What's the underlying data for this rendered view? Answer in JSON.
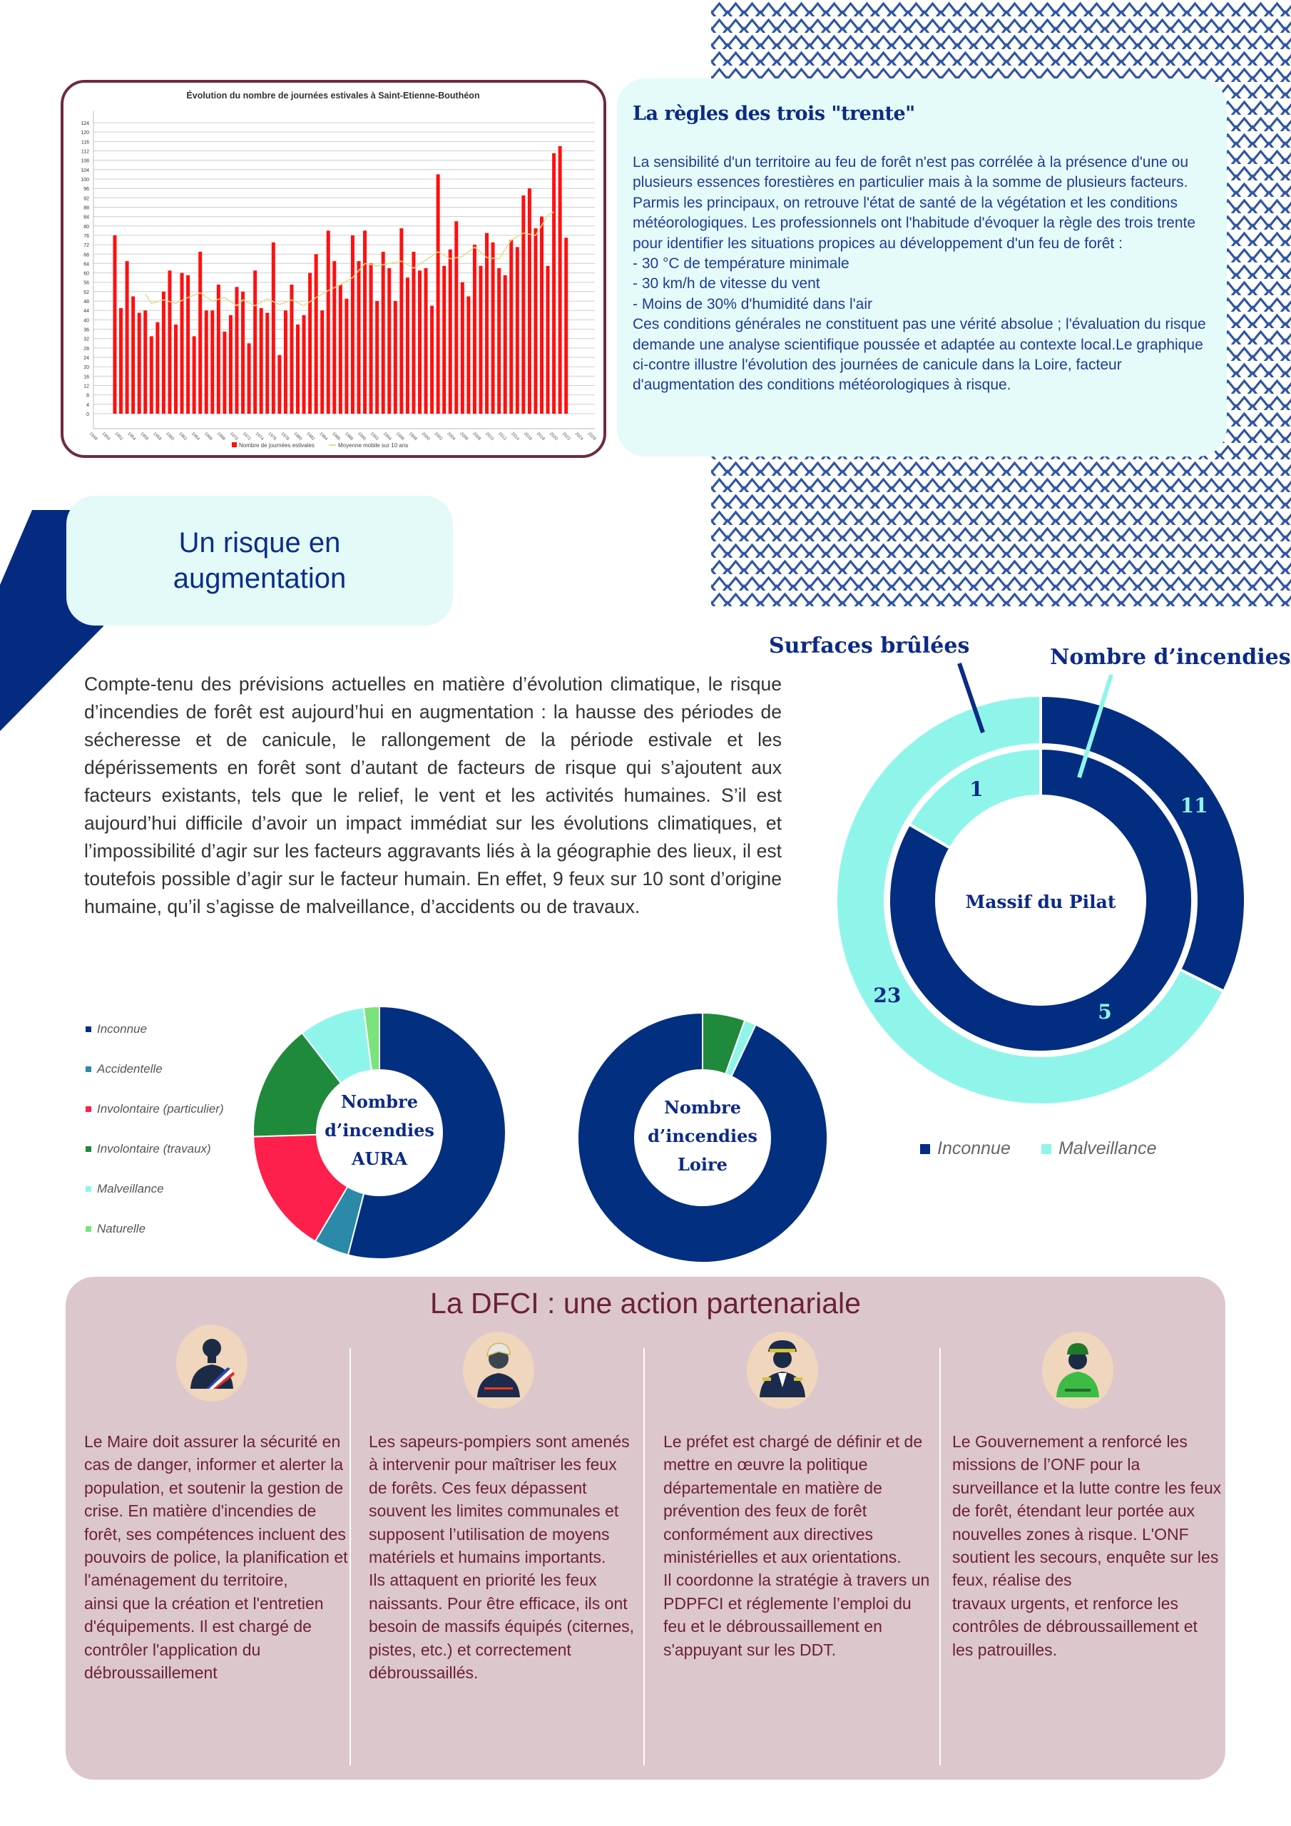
{
  "rule_box": {
    "title": "La règles des trois \"trente\"",
    "body": "La sensibilité d'un territoire au feu de forêt n'est pas corrélée à la présence d'une ou plusieurs essences forestières en particulier mais à la somme de plusieurs facteurs. Parmis les principaux, on retrouve l'état de santé de la végétation et les conditions météorologiques. Les professionnels ont l'habitude d'évoquer la règle des trois trente pour identifier les situations propices au développement d'un feu de forêt :\n- 30 °C de température minimale\n- 30 km/h de vitesse du vent\n- Moins de 30% d'humidité dans l'air\nCes conditions générales ne constituent pas une vérité absolue ; l'évaluation du risque demande une analyse scientifique poussée et adaptée au contexte local.Le graphique ci-contre illustre l'évolution des journées de canicule dans la Loire, facteur d'augmentation des conditions météorologiques à risque."
  },
  "risk": {
    "title": "Un risque en augmentation",
    "text": "Compte-tenu des prévisions actuelles en matière d’évolution climatique, le risque d’incendies de forêt est aujourd’hui en augmentation : la hausse des périodes de sécheresse et de canicule, le rallongement de la période estivale et les dépérissements en forêt sont d’autant de facteurs de risque qui s’ajoutent aux facteurs existants, tels que le relief, le vent et les activités humaines. S’il est aujourd’hui difficile d’avoir un impact immédiat sur les évolutions climatiques, et l’impossibilité d’agir sur les facteurs aggravants liés à la géographie des lieux, il est toutefois possible d’agir sur le facteur humain. En effet, 9 feux sur 10 sont d’origine humaine, qu’il s’agisse de malveillance, d’accidents ou de travaux."
  },
  "chart_data": [
    {
      "type": "bar",
      "title": "Évolution du nombre de journées estivales à Saint-Etienne-Bouthéon",
      "xlabel": "",
      "ylabel": "",
      "ylim": [
        0,
        124
      ],
      "yticks": [
        0,
        4,
        8,
        12,
        16,
        20,
        24,
        28,
        32,
        36,
        40,
        44,
        48,
        52,
        56,
        60,
        64,
        68,
        72,
        76,
        80,
        84,
        88,
        92,
        96,
        100,
        104,
        108,
        112,
        116,
        120,
        124
      ],
      "xtick_labels": [
        "1948",
        "1950",
        "1952",
        "1954",
        "1956",
        "1958",
        "1960",
        "1962",
        "1964",
        "1966",
        "1968",
        "1970",
        "1972",
        "1974",
        "1976",
        "1978",
        "1980",
        "1982",
        "1984",
        "1986",
        "1988",
        "1990",
        "1992",
        "1994",
        "1996",
        "1998",
        "2000",
        "2002",
        "2004",
        "2006",
        "2008",
        "2010",
        "2012",
        "2014",
        "2016",
        "2018",
        "2020",
        "2022",
        "2024",
        "2026"
      ],
      "grid": true,
      "legend_position": "bottom",
      "x": [
        1950,
        1951,
        1952,
        1953,
        1954,
        1955,
        1956,
        1957,
        1958,
        1959,
        1960,
        1961,
        1962,
        1963,
        1964,
        1965,
        1966,
        1967,
        1968,
        1969,
        1970,
        1971,
        1972,
        1973,
        1974,
        1975,
        1976,
        1977,
        1978,
        1979,
        1980,
        1981,
        1982,
        1983,
        1984,
        1985,
        1986,
        1987,
        1988,
        1989,
        1990,
        1991,
        1992,
        1993,
        1994,
        1995,
        1996,
        1997,
        1998,
        1999,
        2000,
        2001,
        2002,
        2003,
        2004,
        2005,
        2006,
        2007,
        2008,
        2009,
        2010,
        2011,
        2012,
        2013,
        2014,
        2015,
        2016,
        2017,
        2018,
        2019,
        2020,
        2021,
        2022,
        2023,
        2024
      ],
      "series": [
        {
          "name": "Nombre de journées estivales",
          "type": "bar",
          "color": "#ff1010",
          "values": [
            76,
            45,
            65,
            50,
            43,
            44,
            33,
            39,
            52,
            61,
            38,
            60,
            59,
            33,
            69,
            44,
            44,
            55,
            35,
            42,
            54,
            52,
            30,
            61,
            45,
            43,
            73,
            25,
            44,
            55,
            38,
            42,
            60,
            68,
            44,
            78,
            65,
            55,
            49,
            76,
            65,
            78,
            64,
            48,
            69,
            62,
            48,
            79,
            58,
            69,
            61,
            62,
            46,
            102,
            63,
            70,
            82,
            56,
            50,
            72,
            63,
            77,
            73,
            62,
            59,
            74,
            71,
            93,
            96,
            79,
            84,
            63,
            111,
            114,
            75
          ]
        },
        {
          "name": "Moyenne mobile sur 10 ans",
          "type": "line",
          "color": "#e6dc86",
          "points": [
            [
              1955,
              51
            ],
            [
              1956,
              47
            ],
            [
              1958,
              48.5
            ],
            [
              1960,
              47
            ],
            [
              1962,
              49.5
            ],
            [
              1964,
              51.5
            ],
            [
              1966,
              48
            ],
            [
              1968,
              49.5
            ],
            [
              1970,
              46
            ],
            [
              1971,
              48.5
            ],
            [
              1973,
              46
            ],
            [
              1975,
              49
            ],
            [
              1977,
              46.5
            ],
            [
              1979,
              48.5
            ],
            [
              1981,
              46
            ],
            [
              1983,
              49.5
            ],
            [
              1985,
              52.5
            ],
            [
              1987,
              55
            ],
            [
              1989,
              58
            ],
            [
              1991,
              64
            ],
            [
              1993,
              63
            ],
            [
              1995,
              64
            ],
            [
              1997,
              65
            ],
            [
              1999,
              62
            ],
            [
              2001,
              65.5
            ],
            [
              2003,
              69
            ],
            [
              2005,
              66
            ],
            [
              2007,
              67
            ],
            [
              2009,
              71
            ],
            [
              2011,
              66.5
            ],
            [
              2013,
              66
            ],
            [
              2015,
              74
            ],
            [
              2017,
              77
            ],
            [
              2019,
              76
            ],
            [
              2021,
              84.5
            ],
            [
              2022,
              86
            ]
          ]
        }
      ]
    },
    {
      "type": "pie",
      "center_label": "Massif du Pilat",
      "rings": [
        {
          "name": "Surfaces brûlées",
          "categories": [
            "Inconnue",
            "Malveillance"
          ],
          "values": [
            11,
            23
          ]
        },
        {
          "name": "Nombre d’incendies",
          "categories": [
            "Inconnue",
            "Malveillance"
          ],
          "values": [
            5,
            1
          ]
        }
      ],
      "legend": [
        "Inconnue",
        "Malveillance"
      ],
      "legend_position": "bottom",
      "colors": {
        "Inconnue": "#022d81",
        "Malveillance": "#8ff5ea"
      }
    },
    {
      "type": "pie",
      "center_label": "Nombre d’incendies AURA",
      "categories": [
        "Inconnue",
        "Accidentelle",
        "Involontaire (particulier)",
        "Involontaire (travaux)",
        "Malveillance",
        "Naturelle"
      ],
      "values": [
        54,
        4.5,
        16,
        15,
        8.5,
        2
      ],
      "colors": [
        "#032f80",
        "#2a8aa8",
        "#ff1f4c",
        "#1f8a3c",
        "#8ff5ea",
        "#7be37b"
      ],
      "legend_position": "left"
    },
    {
      "type": "pie",
      "center_label": "Nombre d’incendies Loire",
      "categories": [
        "Involontaire (travaux)",
        "Malveillance",
        "Inconnue"
      ],
      "values": [
        5.5,
        1.5,
        93
      ],
      "colors": [
        "#1f8a3c",
        "#8ff5ea",
        "#032f80"
      ]
    }
  ],
  "dfci": {
    "title": "La DFCI : une action partenariale",
    "columns": [
      {
        "icon": "mayor-icon",
        "text": "Le Maire doit assurer la sécurité en cas de danger, informer et alerter la population, et soutenir la gestion de crise. En matière d'incendies de forêt, ses compétences incluent des pouvoirs de police, la planification et l'aménagement du territoire,\nainsi que la création et l'entretien d'équipements. Il est chargé de contrôler l'application du débroussaillement"
      },
      {
        "icon": "firefighter-icon",
        "text": "Les sapeurs-pompiers sont amenés à intervenir pour maîtriser les feux de forêts. Ces feux dépassent souvent les limites communales et supposent l’utilisation de moyens matériels et humains importants.\nIls attaquent en priorité les feux naissants. Pour être efficace, ils ont besoin de massifs équipés (citernes, pistes, etc.) et correctement débroussaillés."
      },
      {
        "icon": "prefect-icon",
        "text": "Le préfet est chargé de définir et de mettre en œuvre la politique\ndépartementale en matière de prévention des feux de forêt conformément aux directives ministérielles et aux orientations.\nIl coordonne la stratégie à travers un PDPFCI et réglemente l’emploi du feu et le débroussaillement en s'appuyant sur les DDT."
      },
      {
        "icon": "forest-ranger-icon",
        "text": "Le Gouvernement a renforcé les missions de l’ONF pour la surveillance et la lutte contre les feux de forêt, étendant leur portée aux nouvelles zones à risque. L'ONF soutient les secours, enquête sur les feux, réalise des\ntravaux urgents, et renforce les contrôles de débroussaillement et les patrouilles."
      }
    ]
  },
  "colors": {
    "navy": "#0c2a86",
    "maroon": "#6b2138",
    "mint": "#e5fbf9",
    "pink": "#dcc7cc"
  }
}
